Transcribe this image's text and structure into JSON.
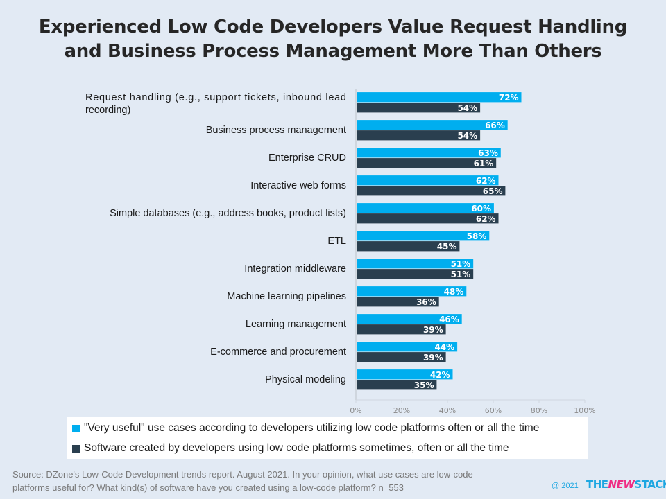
{
  "chart_data": {
    "type": "bar",
    "orientation": "horizontal",
    "title": "Experienced Low Code Developers Value Request Handling and Business Process Management More Than Others",
    "title_lines": [
      "Experienced Low Code Developers Value Request Handling",
      "and Business Process Management More Than Others"
    ],
    "categories": [
      "Request handling (e.g., support tickets, inbound lead recording)",
      "Business process management",
      "Enterprise CRUD",
      "Interactive web forms",
      "Simple databases (e.g., address books, product lists)",
      "ETL",
      "Integration middleware",
      "Machine learning pipelines",
      "Learning management",
      "E-commerce and procurement",
      "Physical modeling"
    ],
    "category_label_lines": [
      [
        "Request handling (e.g., support tickets, inbound lead",
        "recording)"
      ],
      [
        "Business process management"
      ],
      [
        "Enterprise CRUD"
      ],
      [
        "Interactive web forms"
      ],
      [
        "Simple databases (e.g., address books, product lists)"
      ],
      [
        "ETL"
      ],
      [
        "Integration middleware"
      ],
      [
        "Machine learning pipelines"
      ],
      [
        "Learning management"
      ],
      [
        "E-commerce and procurement"
      ],
      [
        "Physical modeling"
      ]
    ],
    "series": [
      {
        "name": "\"Very useful\" use cases according to developers utilizing low code platforms often or all the time",
        "color": "#00aeef",
        "values": [
          72,
          66,
          63,
          62,
          60,
          58,
          51,
          48,
          46,
          44,
          42
        ]
      },
      {
        "name": "Software created by developers using low code platforms sometimes, often or all the time",
        "color": "#2a3f4f",
        "values": [
          54,
          54,
          61,
          65,
          62,
          45,
          51,
          36,
          39,
          39,
          35
        ]
      }
    ],
    "value_suffix": "%",
    "xlabel": "",
    "ylabel": "",
    "xlim": [
      0,
      100
    ],
    "xticks": [
      0,
      20,
      40,
      60,
      80,
      100
    ],
    "xtick_labels": [
      "0%",
      "20%",
      "40%",
      "60%",
      "80%",
      "100%"
    ],
    "grid": false,
    "legend_position": "bottom"
  },
  "footer": {
    "source_lines": [
      "Source: DZone's Low-Code Development trends report. August 2021. In your opinion, what use cases are low-code",
      "platforms useful for? What kind(s) of software have you created using a low-code platform?  n=553"
    ],
    "copyright": "@ 2021",
    "brand_parts": [
      "THE",
      "NEW",
      "STACK"
    ]
  }
}
